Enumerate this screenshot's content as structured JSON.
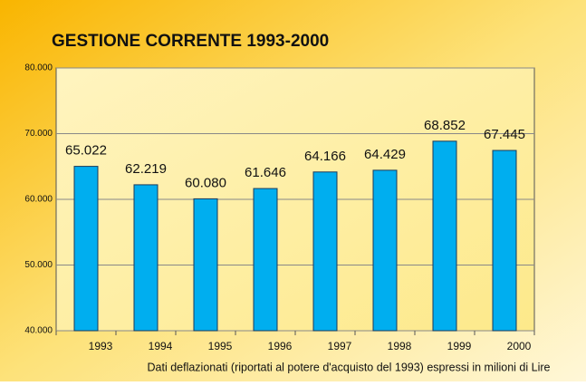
{
  "chart_data": {
    "type": "bar",
    "title": "GESTIONE CORRENTE 1993-2000",
    "xlabel": "Dati  deflazionati  (riportati al potere d'acquisto del 1993) espressi in milioni di Lire",
    "categories": [
      "1993",
      "1994",
      "1995",
      "1996",
      "1997",
      "1998",
      "1999",
      "2000"
    ],
    "values": [
      65022,
      62219,
      60080,
      61646,
      64166,
      64429,
      68852,
      67445
    ],
    "value_labels": [
      "65.022",
      "62.219",
      "60.080",
      "61.646",
      "64.166",
      "64.429",
      "68.852",
      "67.445"
    ],
    "color": "#00aeef",
    "ylim": [
      40000,
      80000
    ],
    "yticks": [
      {
        "value": 40000,
        "label": "40.000"
      },
      {
        "value": 50000,
        "label": "50.000"
      },
      {
        "value": 60000,
        "label": "60.000"
      },
      {
        "value": 70000,
        "label": "70.000"
      },
      {
        "value": 80000,
        "label": "80.000"
      }
    ],
    "grid": true
  }
}
